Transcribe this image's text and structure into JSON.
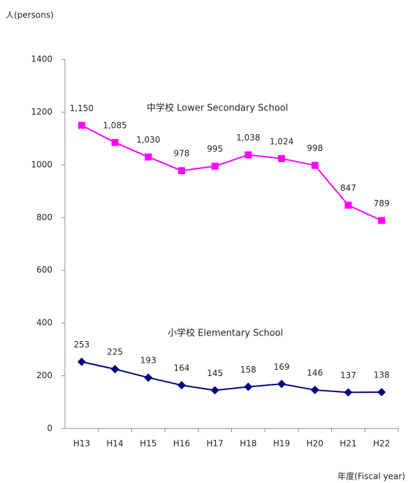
{
  "chart_data": {
    "type": "line",
    "y_axis_label": "人(persons)",
    "x_axis_label": "年度(Fiscal year)",
    "categories": [
      "H13",
      "H14",
      "H15",
      "H16",
      "H17",
      "H18",
      "H19",
      "H20",
      "H21",
      "H22"
    ],
    "series": [
      {
        "name": "中学校 Lower Secondary School",
        "color": "#ff00ff",
        "marker": "square",
        "values": [
          1150,
          1085,
          1030,
          978,
          995,
          1038,
          1024,
          998,
          847,
          789
        ],
        "value_labels": [
          "1,150",
          "1,085",
          "1,030",
          "978",
          "995",
          "1,038",
          "1,024",
          "998",
          "847",
          "789"
        ]
      },
      {
        "name": "小学校 Elementary School",
        "color": "#000080",
        "marker": "diamond",
        "values": [
          253,
          225,
          193,
          164,
          145,
          158,
          169,
          146,
          137,
          138
        ]
      }
    ],
    "ylim": [
      0,
      1400
    ],
    "yticks": [
      0,
      200,
      400,
      600,
      800,
      1000,
      1200,
      1400
    ],
    "grid": false
  }
}
